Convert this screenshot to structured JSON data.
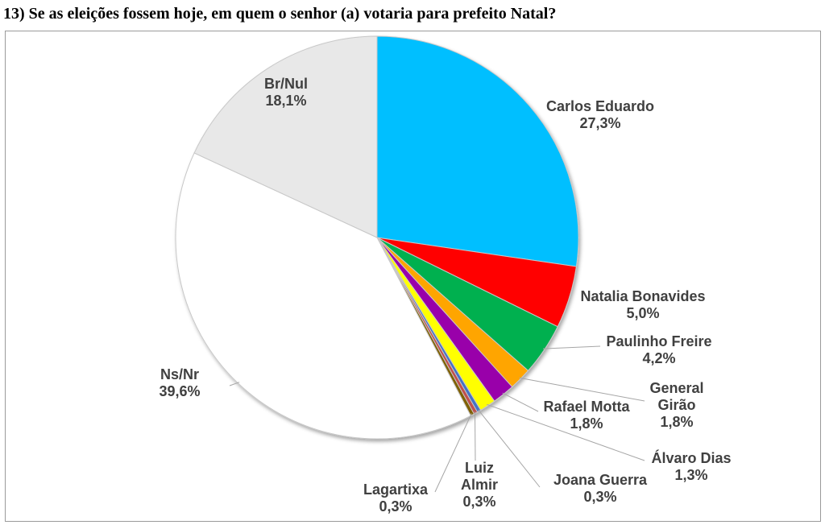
{
  "title": "13) Se as eleições fossem hoje, em quem o senhor (a) votaria para prefeito Natal?",
  "chart_data": {
    "type": "pie",
    "title": "13) Se as eleições fossem hoje, em quem o senhor (a) votaria para prefeito Natal?",
    "slices": [
      {
        "name": "Carlos Eduardo",
        "value": 27.3,
        "label": "27,3%",
        "color": "#00BFFF"
      },
      {
        "name": "Natalia Bonavides",
        "value": 5.0,
        "label": "5,0%",
        "color": "#FF0000"
      },
      {
        "name": "Paulinho Freire",
        "value": 4.2,
        "label": "4,2%",
        "color": "#00B050"
      },
      {
        "name": "General Girão",
        "value": 1.8,
        "label": "1,8%",
        "color": "#FFA500"
      },
      {
        "name": "Rafael Motta",
        "value": 1.8,
        "label": "1,8%",
        "color": "#9900AA"
      },
      {
        "name": "Álvaro Dias",
        "value": 1.3,
        "label": "1,3%",
        "color": "#FFFF00"
      },
      {
        "name": "Joana Guerra",
        "value": 0.3,
        "label": "0,3%",
        "color": "#4472C4"
      },
      {
        "name": "Luiz Almir",
        "value": 0.3,
        "label": "0,3%",
        "color": "#C0504D"
      },
      {
        "name": "Lagartixa",
        "value": 0.3,
        "label": "0,3%",
        "color": "#7F6000"
      },
      {
        "name": "Ns/Nr",
        "value": 39.6,
        "label": "39,6%",
        "color": "#FFFFFF"
      },
      {
        "name": "Br/Nul",
        "value": 18.1,
        "label": "18,1%",
        "color": "#E8E8E8"
      }
    ]
  }
}
